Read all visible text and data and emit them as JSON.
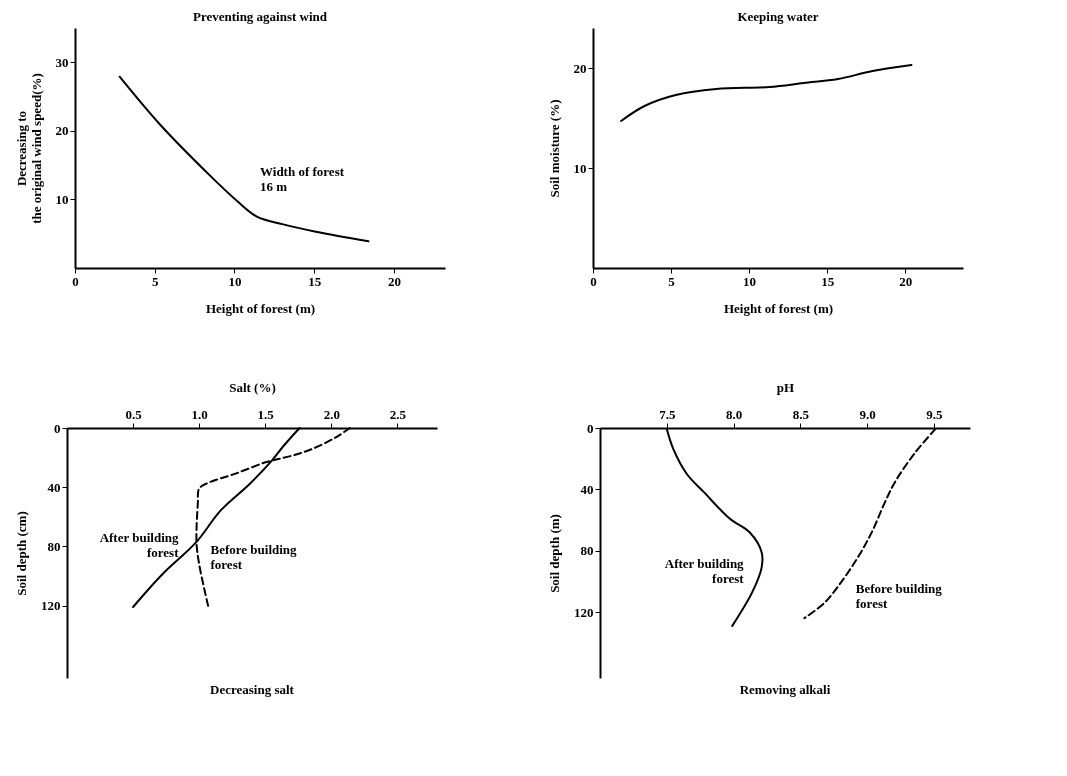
{
  "chart_data": [
    {
      "type": "line",
      "title": "Preventing against wind",
      "xlabel": "Height of forest  (m)",
      "ylabel": "Decreasing to\nthe original  wind speed(%)",
      "xlim": [
        0,
        23.2
      ],
      "ylim": [
        0,
        35
      ],
      "xticks": [
        0,
        5,
        10,
        15,
        20
      ],
      "yticks": [
        10,
        20,
        30
      ],
      "annotations": [
        "Width of forest\n16 m"
      ],
      "series": [
        {
          "color": "#000000",
          "line_style": "solid",
          "x": [
            2.8,
            5.3,
            8.5,
            10.2,
            11.4,
            13.0,
            15.1,
            18.4
          ],
          "values": [
            27.9,
            21.0,
            13.4,
            9.7,
            7.5,
            6.4,
            5.3,
            3.9
          ]
        }
      ]
    },
    {
      "type": "line",
      "title": "Keeping water",
      "xlabel": "Height of forest  (m)",
      "ylabel": "Soil  moisture (%)",
      "xlim": [
        0,
        23.7
      ],
      "ylim": [
        0,
        24
      ],
      "xticks": [
        0,
        5,
        10,
        15,
        20
      ],
      "yticks": [
        10,
        20
      ],
      "series": [
        {
          "color": "#000000",
          "line_style": "solid",
          "x": [
            1.8,
            3.3,
            5.3,
            7.9,
            11.3,
            13.5,
            15.7,
            17.9,
            20.4
          ],
          "values": [
            14.7,
            16.2,
            17.3,
            17.9,
            18.1,
            18.5,
            18.9,
            19.7,
            20.3
          ]
        }
      ]
    },
    {
      "type": "line",
      "title": "Decreasing salt",
      "xlabel": "Salt  (%)",
      "ylabel": "Soil  depth (cm)",
      "xlim": [
        0,
        2.8
      ],
      "ylim": [
        169,
        0
      ],
      "xticks": [
        0.5,
        {
          "value": 1,
          "label": "1.0"
        },
        1.5,
        {
          "value": 2,
          "label": "2.0"
        },
        2.5
      ],
      "yticks": [
        0,
        40,
        80,
        120
      ],
      "series": [
        {
          "name": "After building forest",
          "color": "#000000",
          "line_style": "solid",
          "x": [
            1.76,
            1.64,
            1.55,
            1.38,
            1.16,
            0.98,
            0.72,
            0.5
          ],
          "values": [
            0,
            12,
            22,
            38,
            56,
            77,
            99,
            121
          ]
        },
        {
          "name": "Before building forest",
          "color": "#000000",
          "line_style": "dashed",
          "x": [
            2.14,
            2.04,
            1.86,
            1.69,
            1.51,
            1.27,
            1.07,
            1.0,
            0.99,
            0.98,
            1.0,
            1.07
          ],
          "values": [
            0,
            6,
            14,
            19,
            23,
            31,
            37,
            41,
            51,
            77,
            92,
            121
          ]
        }
      ]
    },
    {
      "type": "line",
      "title": "Removing alkali",
      "xlabel": "pH",
      "ylabel": "Soil  depth (m)",
      "xlim": [
        7.0,
        9.77
      ],
      "ylim": [
        163,
        0
      ],
      "xticks": [
        7.5,
        {
          "value": 8,
          "label": "8.0"
        },
        8.5,
        {
          "value": 9,
          "label": "9.0"
        },
        9.5
      ],
      "yticks": [
        0,
        40,
        80,
        120
      ],
      "series": [
        {
          "name": "After building forest",
          "color": "#000000",
          "line_style": "solid",
          "x": [
            7.5,
            7.55,
            7.65,
            7.78,
            7.97,
            8.12,
            8.21,
            8.21,
            8.14,
            7.99
          ],
          "values": [
            0.7,
            14,
            30,
            42,
            59,
            68,
            81,
            91,
            107,
            129
          ]
        },
        {
          "name": "Before building forest",
          "color": "#000000",
          "line_style": "dashed",
          "x": [
            9.51,
            9.36,
            9.21,
            9.13,
            9.04,
            8.94,
            8.81,
            8.68,
            8.53
          ],
          "values": [
            0.7,
            16,
            35,
            49,
            67,
            83,
            100,
            114,
            124
          ]
        }
      ]
    }
  ]
}
